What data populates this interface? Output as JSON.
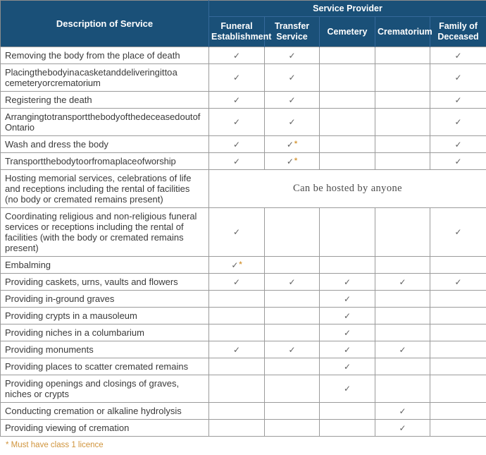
{
  "colors": {
    "header_bg": "#1a5078",
    "header_divider": "#35699b",
    "body_border": "#9b9b9b",
    "check_color": "#5f5f5f",
    "footnote_orange": "#d0943c"
  },
  "table": {
    "corner_header": "Description of Service",
    "group_header": "Service Provider",
    "providers": [
      "Funeral Establishment",
      "Transfer Service",
      "Cemetery",
      "Crematorium",
      "Family of Deceased"
    ],
    "check_icon": "✓",
    "asterisk_icon": "*",
    "rows": [
      {
        "desc": "Removing the body from the place of death",
        "tight": false,
        "cells": [
          "check",
          "check",
          "",
          "",
          "check"
        ]
      },
      {
        "desc": "Placing the body in a casket and delivering it to a cemetery or crematorium",
        "tight": true,
        "cells": [
          "check",
          "check",
          "",
          "",
          "check"
        ]
      },
      {
        "desc": "Registering the death",
        "tight": false,
        "cells": [
          "check",
          "check",
          "",
          "",
          "check"
        ]
      },
      {
        "desc": "Arranging to transport the body of the deceased out of Ontario",
        "tight": true,
        "cells": [
          "check",
          "check",
          "",
          "",
          "check"
        ]
      },
      {
        "desc": "Wash and dress the body",
        "tight": false,
        "cells": [
          "check",
          "check*",
          "",
          "",
          "check"
        ]
      },
      {
        "desc": "Transport the body to or from a place of worship",
        "tight": true,
        "cells": [
          "check",
          "check*",
          "",
          "",
          "check"
        ]
      },
      {
        "desc": "Hosting memorial services, celebrations of life and receptions including the rental of facilities (no body or cremated remains present)",
        "tight": false,
        "merged": "Can be hosted by anyone"
      },
      {
        "desc": "Coordinating religious and non-religious funeral services or receptions including the rental of facilities (with the body or cremated remains present)",
        "tight": false,
        "cells": [
          "check",
          "",
          "",
          "",
          "check"
        ]
      },
      {
        "desc": "Embalming",
        "tight": false,
        "cells": [
          "check*",
          "",
          "",
          "",
          ""
        ]
      },
      {
        "desc": "Providing caskets, urns, vaults and flowers",
        "tight": false,
        "cells": [
          "check",
          "check",
          "check",
          "check",
          "check"
        ]
      },
      {
        "desc": "Providing in-ground graves",
        "tight": false,
        "cells": [
          "",
          "",
          "check",
          "",
          ""
        ]
      },
      {
        "desc": "Providing crypts in a mausoleum",
        "tight": false,
        "cells": [
          "",
          "",
          "check",
          "",
          ""
        ]
      },
      {
        "desc": "Providing niches in a columbarium",
        "tight": false,
        "cells": [
          "",
          "",
          "check",
          "",
          ""
        ]
      },
      {
        "desc": "Providing monuments",
        "tight": false,
        "cells": [
          "check",
          "check",
          "check",
          "check",
          ""
        ]
      },
      {
        "desc": "Providing places to scatter cremated remains",
        "tight": false,
        "cells": [
          "",
          "",
          "check",
          "",
          ""
        ]
      },
      {
        "desc": "Providing openings and closings of graves, niches or crypts",
        "tight": false,
        "cells": [
          "",
          "",
          "check",
          "",
          ""
        ]
      },
      {
        "desc": "Conducting cremation or alkaline hydrolysis",
        "tight": false,
        "cells": [
          "",
          "",
          "",
          "check",
          ""
        ]
      },
      {
        "desc": "Providing viewing of cremation",
        "tight": false,
        "cells": [
          "",
          "",
          "",
          "check",
          ""
        ]
      }
    ],
    "footnote": "* Must have class 1 licence"
  }
}
